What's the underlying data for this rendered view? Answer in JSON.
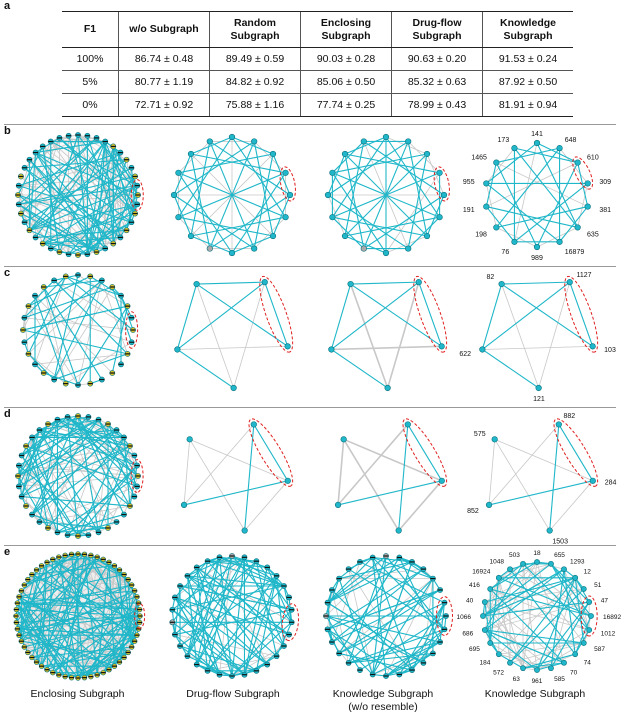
{
  "panel_labels": {
    "a": "a",
    "b": "b",
    "c": "c",
    "d": "d",
    "e": "e"
  },
  "table": {
    "headers": [
      "F1",
      "w/o Subgraph",
      "Random Subgraph",
      "Enclosing Subgraph",
      "Drug-flow Subgraph",
      "Knowledge Subgraph"
    ],
    "rows": [
      [
        "100%",
        "86.74 ± 0.48",
        "89.49 ± 0.59",
        "90.03 ± 0.28",
        "90.63 ± 0.20",
        "91.53 ± 0.24"
      ],
      [
        "5%",
        "80.77 ± 1.19",
        "84.82 ± 0.92",
        "85.06 ± 0.50",
        "85.32 ± 0.63",
        "87.92 ± 0.50"
      ],
      [
        "0%",
        "72.71 ± 0.92",
        "75.88 ± 1.16",
        "77.74 ± 0.25",
        "78.99 ± 0.43",
        "81.91 ± 0.94"
      ]
    ]
  },
  "node_labels": {
    "b": [
      "173",
      "141",
      "1465",
      "648",
      "955",
      "610",
      "309",
      "191",
      "381",
      "198",
      "635",
      "76",
      "16879",
      "989"
    ],
    "c": [
      "1127",
      "82",
      "103",
      "622",
      "121"
    ],
    "d": [
      "882",
      "575",
      "284",
      "852",
      "1503"
    ],
    "e": [
      "1048",
      "503",
      "18",
      "16924",
      "655",
      "416",
      "1293",
      "40",
      "12",
      "51",
      "1066",
      "47",
      "686",
      "16892",
      "695",
      "1012",
      "184",
      "587",
      "572",
      "74",
      "63",
      "961",
      "585",
      "70"
    ]
  },
  "captions": [
    "Enclosing Subgraph",
    "Drug-flow Subgraph",
    "Knowledge Subgraph",
    "(w/o resemble)",
    "Knowledge Subgraph"
  ],
  "colors": {
    "teal": "#1fb7c9",
    "gray": "#c8c8c8",
    "yellow": "#d6c12a",
    "red_dashed": "#e02020",
    "node_outline": "#0b6f7c"
  }
}
